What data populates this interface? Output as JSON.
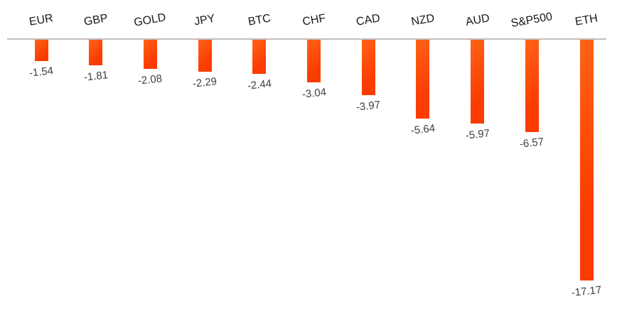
{
  "chart_data": {
    "type": "bar",
    "title": "",
    "xlabel": "",
    "ylabel": "",
    "categories": [
      "EUR",
      "GBP",
      "GOLD",
      "JPY",
      "BTC",
      "CHF",
      "CAD",
      "NZD",
      "AUD",
      "S&P500",
      "ETH"
    ],
    "values": [
      -1.54,
      -1.81,
      -2.08,
      -2.29,
      -2.44,
      -3.04,
      -3.97,
      -5.64,
      -5.97,
      -6.57,
      -17.17
    ],
    "value_labels": [
      "-1.54",
      "-1.81",
      "-2.08",
      "-2.29",
      "-2.44",
      "-3.04",
      "-3.97",
      "-5.64",
      "-5.97",
      "-6.57",
      "-17.17"
    ],
    "ylim": [
      -18,
      0
    ],
    "grid": false,
    "legend": "none",
    "orientation": "vertical-negative",
    "colors": {
      "bar_main": "#fb3c00",
      "bar_highlight": "#ff6319",
      "axis_line": "#bfbfbf",
      "category_label": "#1a1a1a",
      "value_label": "#3f3f3f",
      "background": "#ffffff"
    }
  }
}
